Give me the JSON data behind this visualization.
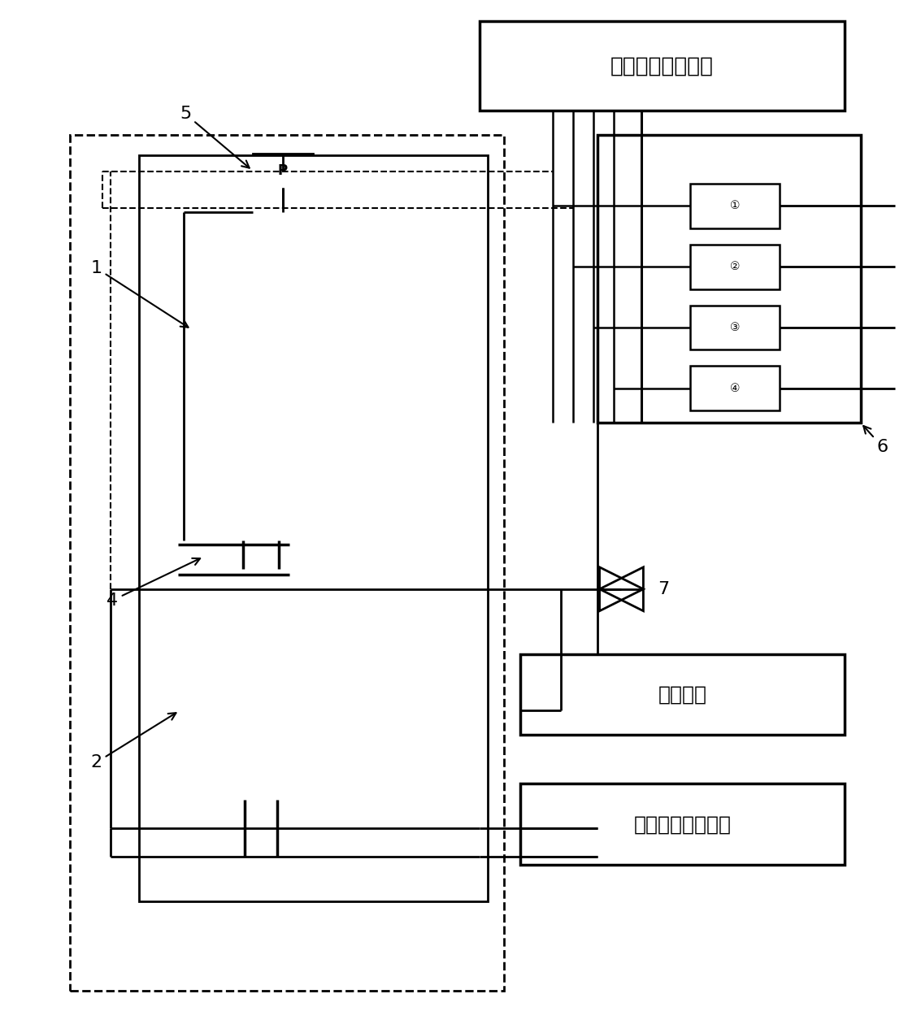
{
  "bg_color": "#ffffff",
  "line_color": "#000000",
  "box_data_unit": "数据监控处理单元",
  "box_wheatstone": "西林电桥",
  "box_fiber": "光纤景象处理单元",
  "pressure_label": "P",
  "sensor_symbols": [
    "①",
    "②",
    "③",
    "④"
  ],
  "label_1": "1",
  "label_2": "2",
  "label_4": "4",
  "label_5": "5",
  "label_6": "6",
  "label_7": "7"
}
